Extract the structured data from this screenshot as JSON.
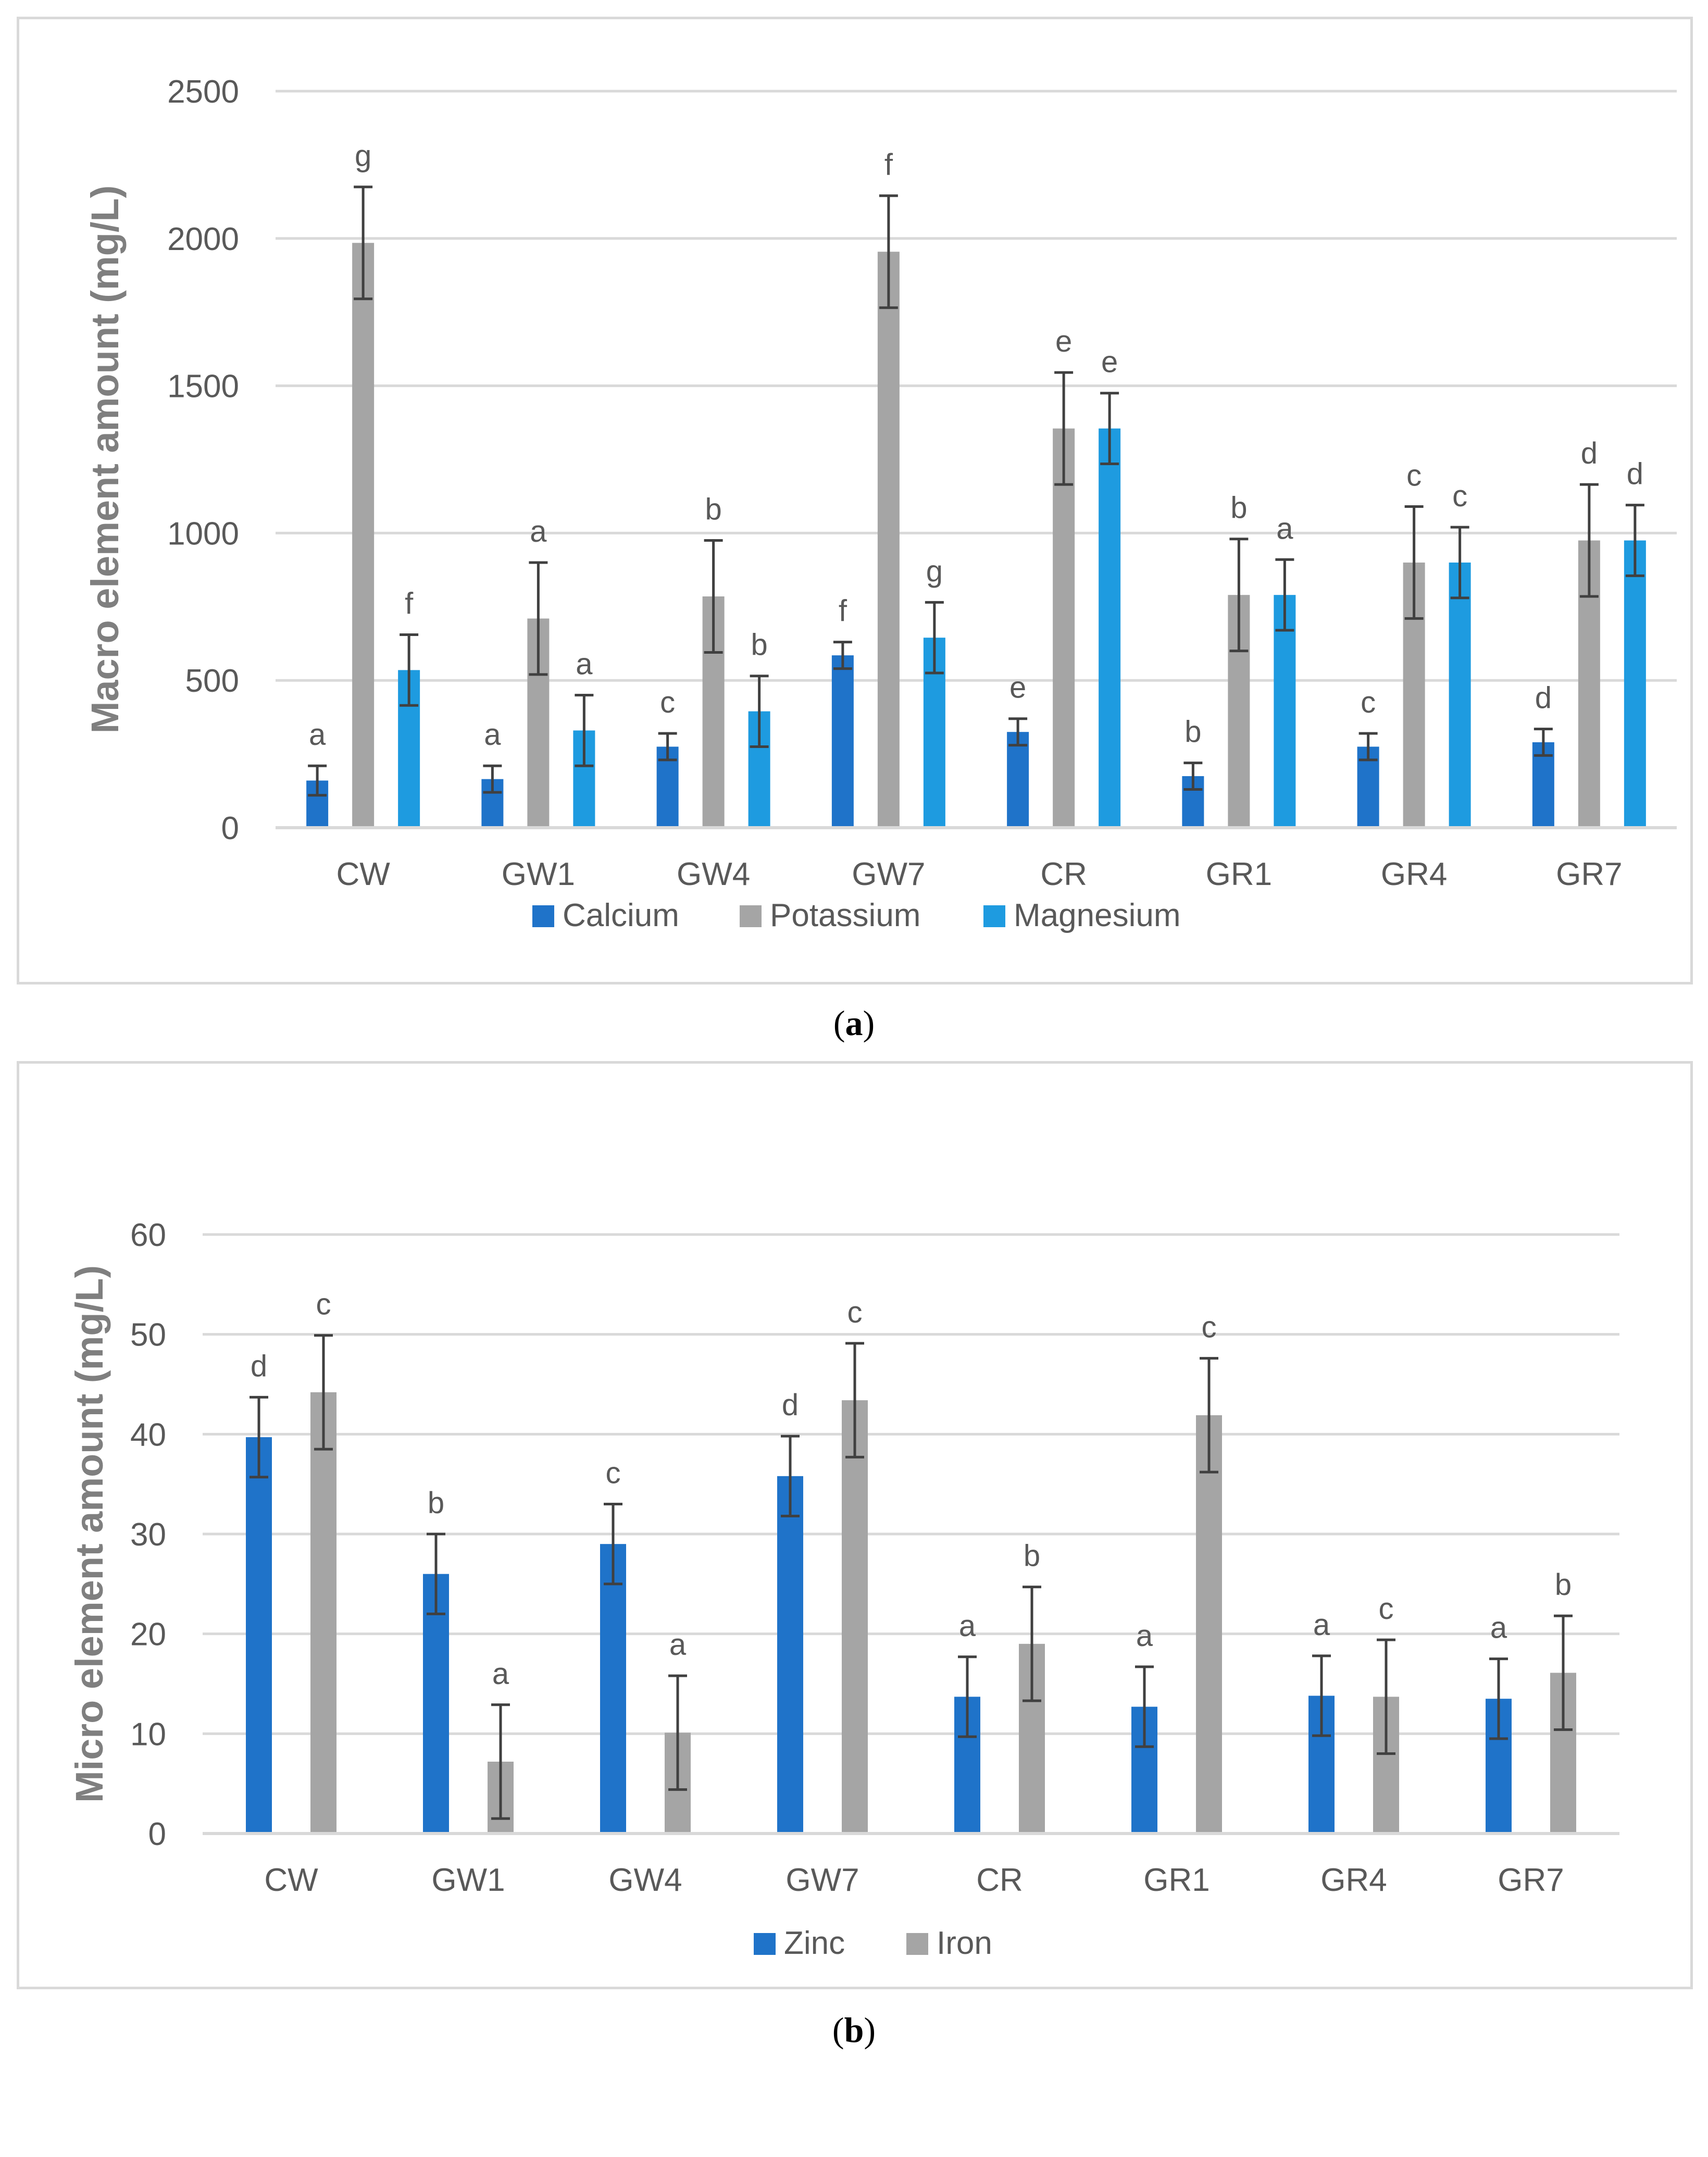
{
  "chart_data": [
    {
      "type": "bar",
      "panel_label": "a",
      "title": "",
      "xlabel": "",
      "ylabel": "Macro element amount (mg/L)",
      "ylim": [
        0,
        2500
      ],
      "yticks": [
        0,
        500,
        1000,
        1500,
        2000,
        2500
      ],
      "categories": [
        "CW",
        "GW1",
        "GW4",
        "GW7",
        "CR",
        "GR1",
        "GR4",
        "GR7"
      ],
      "series": [
        {
          "name": "Calcium",
          "color": "#1f73c9",
          "values": [
            160,
            165,
            275,
            585,
            325,
            175,
            275,
            290
          ],
          "errors": [
            50,
            45,
            45,
            45,
            45,
            45,
            45,
            45
          ],
          "letters": [
            "a",
            "a",
            "c",
            "f",
            "e",
            "b",
            "c",
            "d"
          ]
        },
        {
          "name": "Potassium",
          "color": "#a5a5a5",
          "values": [
            1985,
            710,
            785,
            1955,
            1355,
            790,
            900,
            975
          ],
          "errors": [
            190,
            190,
            190,
            190,
            190,
            190,
            190,
            190
          ],
          "letters": [
            "g",
            "a",
            "b",
            "f",
            "e",
            "b",
            "c",
            "d"
          ]
        },
        {
          "name": "Magnesium",
          "color": "#1e9be0",
          "values": [
            535,
            330,
            395,
            645,
            1355,
            790,
            900,
            975
          ],
          "errors": [
            120,
            120,
            120,
            120,
            120,
            120,
            120,
            120
          ],
          "letters": [
            "f",
            "a",
            "b",
            "g",
            "e",
            "a",
            "c",
            "d"
          ]
        }
      ]
    },
    {
      "type": "bar",
      "panel_label": "b",
      "title": "",
      "xlabel": "",
      "ylabel": "Micro element amount (mg/L)",
      "ylim": [
        0,
        60
      ],
      "yticks": [
        0,
        10,
        20,
        30,
        40,
        50,
        60
      ],
      "categories": [
        "CW",
        "GW1",
        "GW4",
        "GW7",
        "CR",
        "GR1",
        "GR4",
        "GR7"
      ],
      "series": [
        {
          "name": "Zinc",
          "color": "#1f73c9",
          "values": [
            39.7,
            26.0,
            29.0,
            35.8,
            13.7,
            12.7,
            13.8,
            13.5
          ],
          "errors": [
            4.0,
            4.0,
            4.0,
            4.0,
            4.0,
            4.0,
            4.0,
            4.0
          ],
          "letters": [
            "d",
            "b",
            "c",
            "d",
            "a",
            "a",
            "a",
            "a"
          ]
        },
        {
          "name": "Iron",
          "color": "#a5a5a5",
          "values": [
            44.2,
            7.2,
            10.1,
            43.4,
            19.0,
            41.9,
            13.7,
            16.1
          ],
          "errors": [
            5.7,
            5.7,
            5.7,
            5.7,
            5.7,
            5.7,
            5.7,
            5.7
          ],
          "letters": [
            "c",
            "a",
            "a",
            "c",
            "b",
            "c",
            "c",
            "b"
          ]
        }
      ]
    }
  ]
}
